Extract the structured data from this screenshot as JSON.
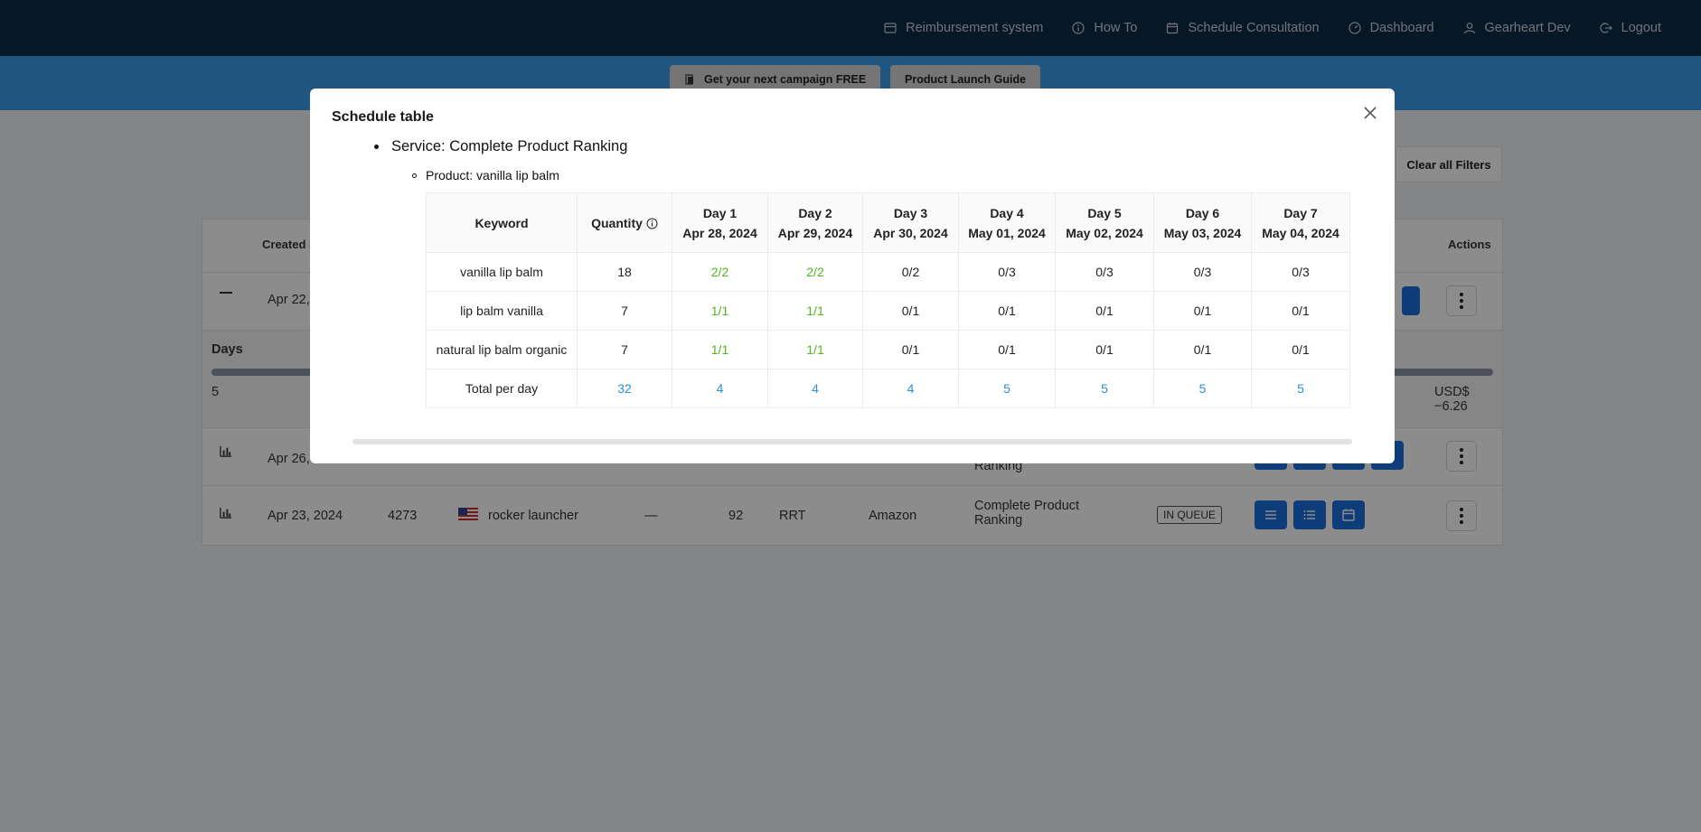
{
  "nav": {
    "items": [
      {
        "label": "Reimbursement system",
        "icon": "wallet-icon"
      },
      {
        "label": "How To",
        "icon": "info-circle-icon"
      },
      {
        "label": "Schedule Consultation",
        "icon": "calendar-icon"
      },
      {
        "label": "Dashboard",
        "icon": "dashboard-icon"
      },
      {
        "label": "Gearheart Dev",
        "icon": "user-icon"
      },
      {
        "label": "Logout",
        "icon": "logout-icon"
      }
    ]
  },
  "banner": {
    "campaign_label": "Get your next campaign FREE",
    "guide_label": "Product Launch Guide"
  },
  "filters": {
    "clear_label": "Clear all Filters"
  },
  "background_table": {
    "headers": {
      "created": "Created D",
      "actions": "Actions"
    },
    "row1": {
      "date": "Apr 22,"
    },
    "days_panel": {
      "title": "Days",
      "value": "5",
      "price": "USD$ −6.26"
    },
    "row2": {
      "date": "Apr 26,",
      "service": "Ranking"
    },
    "row3": {
      "date": "Apr 23, 2024",
      "id": "4273",
      "product": "rocker launcher",
      "dash": "—",
      "qty": "92",
      "code": "RRT",
      "marketplace": "Amazon",
      "service": "Complete Product Ranking",
      "status": "IN QUEUE"
    }
  },
  "modal": {
    "title": "Schedule table",
    "service_label": "Service:",
    "service_value": "Complete Product Ranking",
    "product_label": "Product:",
    "product_value": "vanilla lip balm",
    "columns": {
      "keyword": "Keyword",
      "quantity": "Quantity",
      "days": [
        {
          "day": "Day 1",
          "date": "Apr 28, 2024"
        },
        {
          "day": "Day 2",
          "date": "Apr 29, 2024"
        },
        {
          "day": "Day 3",
          "date": "Apr 30, 2024"
        },
        {
          "day": "Day 4",
          "date": "May 01, 2024"
        },
        {
          "day": "Day 5",
          "date": "May 02, 2024"
        },
        {
          "day": "Day 6",
          "date": "May 03, 2024"
        },
        {
          "day": "Day 7",
          "date": "May 04, 2024"
        }
      ]
    },
    "rows": [
      {
        "keyword": "vanilla lip balm",
        "quantity": "18",
        "days": [
          "2/2",
          "2/2",
          "0/2",
          "0/3",
          "0/3",
          "0/3",
          "0/3"
        ]
      },
      {
        "keyword": "lip balm vanilla",
        "quantity": "7",
        "days": [
          "1/1",
          "1/1",
          "0/1",
          "0/1",
          "0/1",
          "0/1",
          "0/1"
        ]
      },
      {
        "keyword": "natural lip balm organic",
        "quantity": "7",
        "days": [
          "1/1",
          "1/1",
          "0/1",
          "0/1",
          "0/1",
          "0/1",
          "0/1"
        ]
      }
    ],
    "total": {
      "label": "Total per day",
      "quantity": "32",
      "days": [
        "4",
        "4",
        "4",
        "5",
        "5",
        "5",
        "5"
      ]
    }
  },
  "colors": {
    "complete": "#52b61b",
    "total": "#2e8ee0",
    "nav_bg": "#0c2a45",
    "banner_bg": "#3a9be8"
  }
}
